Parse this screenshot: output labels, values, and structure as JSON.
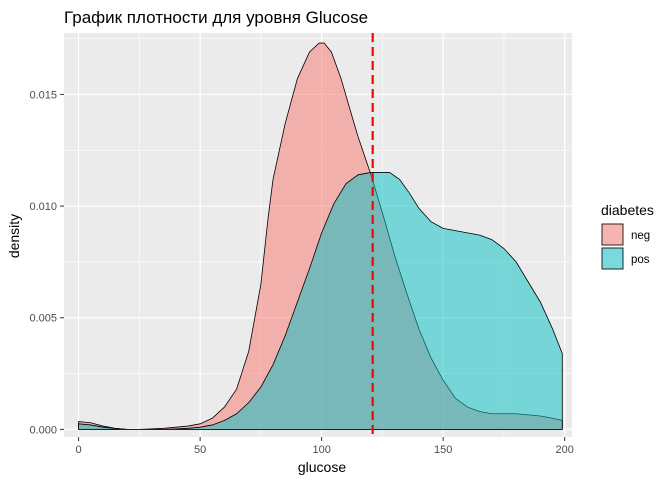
{
  "chart_data": {
    "type": "area",
    "title": "График плотности  для уровня Glucose",
    "xlabel": "glucose",
    "ylabel": "density",
    "xlim": [
      -6,
      203
    ],
    "ylim": [
      -0.00034,
      0.01775
    ],
    "x_ticks": [
      0,
      50,
      100,
      150,
      200
    ],
    "x_tick_labels": [
      "0",
      "50",
      "100",
      "150",
      "200"
    ],
    "y_ticks": [
      0.0,
      0.005,
      0.01,
      0.015
    ],
    "y_tick_labels": [
      "0.000",
      "0.005",
      "0.010",
      "0.015"
    ],
    "grid": true,
    "legend": {
      "title": "diabetes",
      "position": "right"
    },
    "series": [
      {
        "name": "neg",
        "color": "#F8766D",
        "x": [
          0,
          5,
          10,
          15,
          20,
          25,
          30,
          35,
          40,
          45,
          50,
          55,
          60,
          65,
          70,
          75,
          78,
          80,
          85,
          90,
          95,
          99,
          101,
          104,
          108,
          112,
          115,
          120,
          125,
          130,
          135,
          140,
          145,
          150,
          155,
          160,
          165,
          170,
          175,
          180,
          185,
          190,
          195,
          199
        ],
        "y": [
          0.00035,
          0.0003,
          0.00015,
          5e-05,
          0.0,
          0.0,
          2e-05,
          5e-05,
          0.0001,
          0.00015,
          0.00025,
          0.0005,
          0.001,
          0.0018,
          0.0035,
          0.0065,
          0.0095,
          0.0112,
          0.0137,
          0.0157,
          0.0169,
          0.0173,
          0.0173,
          0.0169,
          0.0157,
          0.0142,
          0.0131,
          0.0115,
          0.0097,
          0.0078,
          0.0061,
          0.0045,
          0.0032,
          0.0022,
          0.0014,
          0.001,
          0.0008,
          0.0007,
          0.0007,
          0.0007,
          0.00065,
          0.0006,
          0.0005,
          0.0004
        ]
      },
      {
        "name": "pos",
        "color": "#00BFC4",
        "x": [
          0,
          5,
          10,
          15,
          20,
          25,
          30,
          35,
          40,
          45,
          50,
          55,
          60,
          65,
          70,
          75,
          80,
          85,
          90,
          95,
          100,
          105,
          110,
          115,
          120,
          125,
          128,
          132,
          136,
          140,
          145,
          150,
          155,
          160,
          165,
          170,
          175,
          180,
          185,
          190,
          195,
          199
        ],
        "y": [
          0.00025,
          0.0002,
          0.0001,
          4e-05,
          0.0,
          0.0,
          0.0,
          0.0,
          2e-05,
          5e-05,
          0.0001,
          0.0002,
          0.0004,
          0.0007,
          0.0012,
          0.0019,
          0.0029,
          0.0042,
          0.0057,
          0.0072,
          0.0088,
          0.0101,
          0.011,
          0.0114,
          0.0115,
          0.0115,
          0.0115,
          0.0112,
          0.0106,
          0.0099,
          0.0093,
          0.009,
          0.0089,
          0.0088,
          0.0087,
          0.0085,
          0.0081,
          0.0075,
          0.0066,
          0.0057,
          0.0045,
          0.0034
        ]
      }
    ],
    "reference_line": {
      "x": 121,
      "color": "#FF0000",
      "style": "dashed"
    },
    "panel_background": "#EBEBEB",
    "grid_color": "#FFFFFF"
  }
}
